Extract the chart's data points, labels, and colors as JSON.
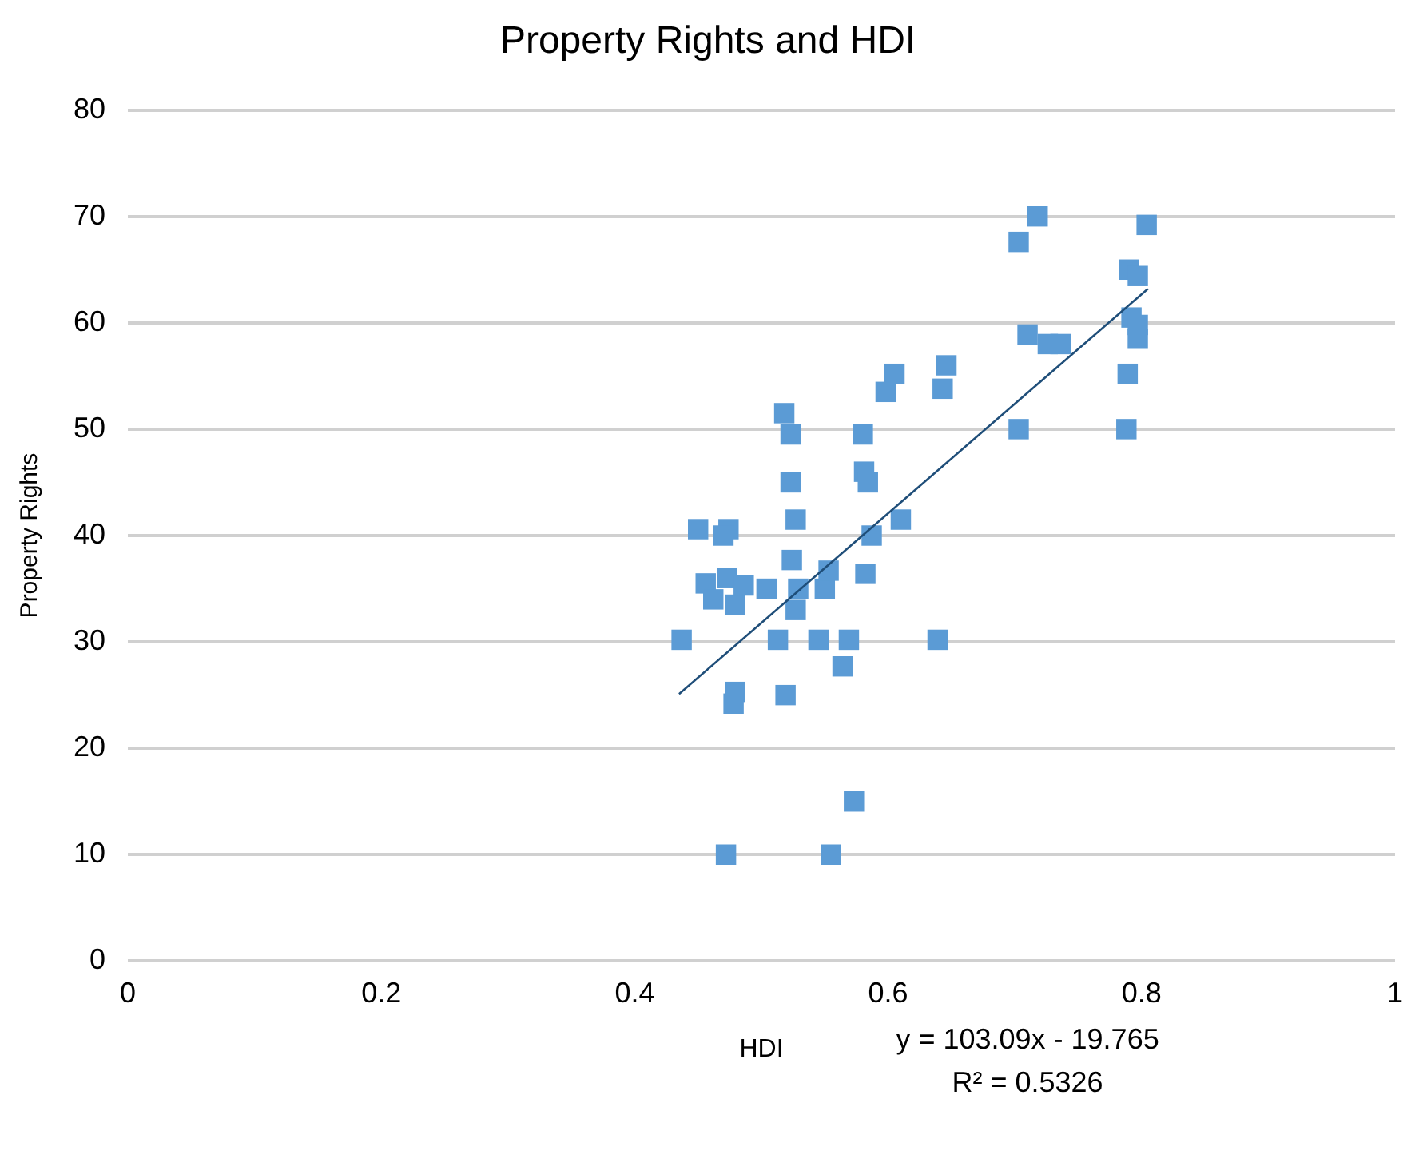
{
  "chart_data": {
    "type": "scatter",
    "title": "Property Rights and HDI",
    "xlabel": "HDI",
    "ylabel": "Property Rights",
    "xlim": [
      0,
      1
    ],
    "xticks": [
      0,
      0.2,
      0.4,
      0.6,
      0.8,
      1
    ],
    "ylim": [
      0,
      80
    ],
    "yticks": [
      0,
      10,
      20,
      30,
      40,
      50,
      60,
      70,
      80
    ],
    "grid": "y",
    "legend": false,
    "marker": "square",
    "annotations": [
      "y = 103.09x - 19.765",
      "R² = 0.5326"
    ],
    "series": [
      {
        "color": "#5b9bd5",
        "x": [
          0.437,
          0.45,
          0.474,
          0.47,
          0.456,
          0.462,
          0.473,
          0.479,
          0.486,
          0.504,
          0.479,
          0.478,
          0.472,
          0.513,
          0.519,
          0.518,
          0.523,
          0.523,
          0.527,
          0.524,
          0.529,
          0.527,
          0.55,
          0.553,
          0.545,
          0.569,
          0.564,
          0.573,
          0.555,
          0.58,
          0.581,
          0.584,
          0.587,
          0.582,
          0.61,
          0.598,
          0.605,
          0.643,
          0.646,
          0.639,
          0.703,
          0.718,
          0.71,
          0.726,
          0.736,
          0.703,
          0.788,
          0.789,
          0.79,
          0.792,
          0.797,
          0.797,
          0.797,
          0.804
        ],
        "values": [
          30.2,
          40.6,
          40.6,
          40,
          35.5,
          34,
          36,
          33.5,
          35.3,
          35,
          25.3,
          24.2,
          10,
          30.2,
          25,
          51.5,
          49.5,
          45,
          41.5,
          37.7,
          35,
          33,
          35,
          36.7,
          30.2,
          30.2,
          27.7,
          15,
          10,
          49.5,
          46,
          45,
          40,
          36.4,
          41.5,
          53.5,
          55.2,
          53.8,
          56,
          30.2,
          67.6,
          70,
          58.9,
          58,
          58,
          50,
          50,
          55.2,
          65,
          60.5,
          59.8,
          58.5,
          64.4,
          69.2
        ]
      },
      {
        "type": "line",
        "color": "#1f4e79",
        "marker": "none",
        "x": [
          0.435,
          0.805
        ],
        "values": [
          25.1,
          63.2
        ]
      }
    ]
  }
}
